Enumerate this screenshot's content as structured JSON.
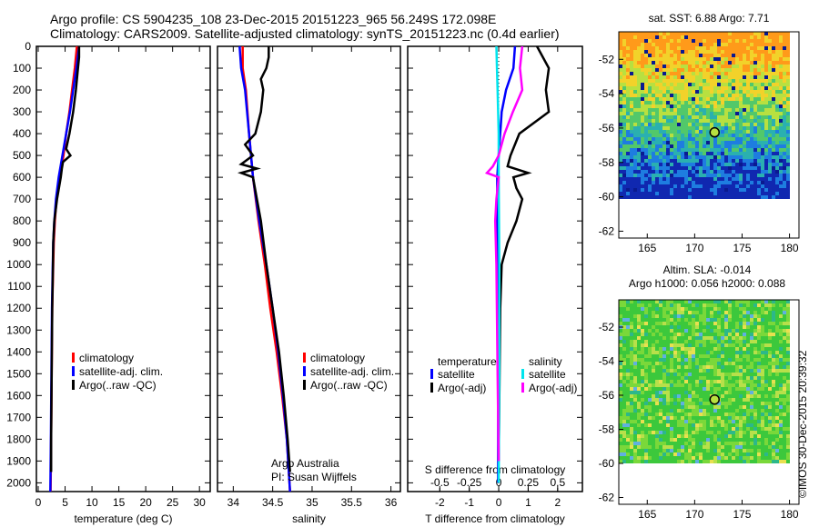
{
  "header": {
    "line1": "Argo profile: CS 5904235_108 23-Dec-2015 20151223_965 56.249S 172.098E",
    "line2": "Climatology: CARS2009. Satellite-adjusted climatology: synTS_20151223.nc (0.4d earlier)"
  },
  "credit": "©IMOS 30-Dec-2015 20:39:32",
  "colors": {
    "clim": "#ff0000",
    "sat": "#0000ff",
    "argo": "#000000",
    "s_sat": "#00e5ee",
    "s_argo": "#ff00ff"
  },
  "chart_data": [
    {
      "type": "line",
      "xlabel": "temperature (deg C)",
      "ylabel": "depth",
      "xlim": [
        -0.34,
        32
      ],
      "ylim": [
        2040,
        0
      ],
      "xticks": [
        "0",
        "5",
        "10",
        "15",
        "20",
        "25",
        "30"
      ],
      "xtickvals": [
        0,
        5,
        10,
        15,
        20,
        25,
        30
      ],
      "legend": [
        "climatology",
        "satellite-adj. clim.",
        "Argo(..raw -QC)"
      ],
      "series": [
        {
          "name": "climatology",
          "color": "clim",
          "depth": [
            0,
            100,
            200,
            300,
            400,
            500,
            600,
            700,
            800,
            900,
            1000,
            1200,
            1500,
            1800,
            2040
          ],
          "values": [
            7.2,
            6.8,
            6.3,
            5.8,
            5.2,
            4.7,
            4.0,
            3.4,
            3.1,
            2.9,
            2.8,
            2.6,
            2.5,
            2.4,
            2.3
          ]
        },
        {
          "name": "satellite-adj. clim.",
          "color": "sat",
          "depth": [
            0,
            100,
            200,
            300,
            400,
            500,
            600,
            700,
            800,
            900,
            1000,
            1200,
            1500,
            1800,
            2040
          ],
          "values": [
            7.6,
            7.1,
            6.5,
            5.9,
            5.2,
            4.5,
            3.8,
            3.3,
            3.0,
            2.8,
            2.7,
            2.55,
            2.45,
            2.35,
            2.25
          ]
        },
        {
          "name": "Argo(..raw -QC)",
          "color": "argo",
          "depth": [
            0,
            50,
            100,
            200,
            300,
            400,
            470,
            500,
            530,
            560,
            600,
            700,
            800,
            900,
            1000,
            1200,
            1500,
            1800,
            1950
          ],
          "values": [
            7.6,
            7.6,
            7.4,
            7.0,
            6.5,
            5.8,
            5.2,
            6.0,
            4.6,
            4.4,
            4.2,
            3.5,
            3.0,
            2.8,
            2.75,
            2.6,
            2.5,
            2.4,
            2.4
          ]
        }
      ]
    },
    {
      "type": "line",
      "xlabel": "salinity",
      "ylabel": "depth",
      "xlim": [
        33.8,
        36.12
      ],
      "ylim": [
        2040,
        0
      ],
      "xticks": [
        "34",
        "34.5",
        "35",
        "35.5",
        "36"
      ],
      "xtickvals": [
        34,
        34.5,
        35,
        35.5,
        36
      ],
      "legend": [
        "climatology",
        "satellite-adj. clim.",
        "Argo(..raw -QC)"
      ],
      "annotation": [
        "Argo Australia",
        "PI: Susan Wijffels"
      ],
      "series": [
        {
          "name": "climatology",
          "color": "clim",
          "depth": [
            0,
            100,
            200,
            400,
            600,
            800,
            1000,
            1200,
            1400,
            1600,
            1800,
            2040
          ],
          "values": [
            34.12,
            34.12,
            34.16,
            34.2,
            34.25,
            34.32,
            34.4,
            34.47,
            34.55,
            34.62,
            34.68,
            34.72
          ]
        },
        {
          "name": "satellite-adj. clim.",
          "color": "sat",
          "depth": [
            0,
            100,
            200,
            400,
            600,
            800,
            1000,
            1200,
            1400,
            1600,
            1800,
            2040
          ],
          "values": [
            34.08,
            34.1,
            34.15,
            34.2,
            34.25,
            34.33,
            34.42,
            34.5,
            34.57,
            34.63,
            34.68,
            34.72
          ]
        },
        {
          "name": "Argo(..raw -QC)",
          "color": "argo",
          "depth": [
            0,
            50,
            100,
            150,
            200,
            300,
            400,
            450,
            500,
            540,
            560,
            580,
            600,
            700,
            800,
            1000,
            1200,
            1400,
            1600,
            1800,
            1950
          ],
          "values": [
            34.45,
            34.45,
            34.42,
            34.35,
            34.38,
            34.35,
            34.28,
            34.15,
            34.25,
            34.1,
            34.3,
            34.1,
            34.25,
            34.3,
            34.35,
            34.42,
            34.5,
            34.58,
            34.64,
            34.69,
            34.72
          ]
        }
      ]
    },
    {
      "type": "line",
      "xlabel": "T difference from climatology",
      "x2label": "S difference from climatology",
      "ylabel": "depth",
      "xlim": [
        -3.09,
        2.84
      ],
      "ylim": [
        2040,
        0
      ],
      "xticks": [
        "-2",
        "-1",
        "0",
        "1",
        "2"
      ],
      "xtickvals": [
        -2,
        -1,
        0,
        1,
        2
      ],
      "x2ticks": [
        "-0.5",
        "-0.25",
        "0",
        "0.25",
        "0.5"
      ],
      "x2tickvals": [
        -0.5,
        -0.25,
        0,
        0.25,
        0.5
      ],
      "legend_t": {
        "title": "temperature",
        "items": [
          "satellite",
          "Argo(-adj)"
        ]
      },
      "legend_s": {
        "title": "salinity",
        "items": [
          "satellite",
          "Argo(-adj)"
        ]
      },
      "series": [
        {
          "name": "T satellite",
          "color": "sat",
          "unit": "T",
          "depth": [
            0,
            100,
            200,
            300,
            400,
            500,
            600,
            800,
            1000,
            1500,
            2000
          ],
          "values": [
            0.55,
            0.5,
            0.25,
            0.1,
            0.05,
            0,
            -0.05,
            -0.05,
            -0.03,
            -0.02,
            -0.02
          ]
        },
        {
          "name": "T Argo(-adj)",
          "color": "argo",
          "unit": "T",
          "depth": [
            0,
            50,
            100,
            200,
            300,
            400,
            500,
            550,
            580,
            600,
            650,
            700,
            800,
            900,
            1000,
            1200,
            1500,
            1900
          ],
          "values": [
            1.3,
            1.5,
            1.7,
            1.6,
            1.7,
            0.7,
            0.4,
            0.3,
            1.0,
            0.5,
            0.6,
            0.8,
            0.6,
            0.3,
            0.1,
            0.05,
            0.03,
            0.0
          ]
        },
        {
          "name": "S satellite",
          "color": "s_sat",
          "unit": "S",
          "depth": [
            0,
            100,
            200,
            400,
            600,
            1000,
            1500,
            2000
          ],
          "values": [
            -0.02,
            -0.015,
            -0.01,
            0,
            0,
            0.005,
            0.005,
            0
          ]
        },
        {
          "name": "S Argo(-adj)",
          "color": "s_argo",
          "unit": "S",
          "depth": [
            0,
            100,
            200,
            300,
            400,
            500,
            550,
            580,
            600,
            700,
            800,
            1000,
            1500,
            1900
          ],
          "values": [
            0.2,
            0.18,
            0.2,
            0.12,
            0.05,
            0.0,
            -0.05,
            -0.1,
            0,
            -0.02,
            -0.03,
            -0.02,
            -0.01,
            0
          ]
        }
      ]
    },
    {
      "type": "heatmap",
      "title": "sat. SST: 6.88 Argo: 7.71",
      "xticks": [
        "165",
        "170",
        "175",
        "180"
      ],
      "xtickvals": [
        165,
        170,
        175,
        180
      ],
      "yticks": [
        "-52",
        "-54",
        "-56",
        "-58",
        "-60",
        "-62"
      ],
      "ytickvals": [
        -52,
        -54,
        -56,
        -58,
        -60,
        -62
      ],
      "xlim": [
        162,
        181
      ],
      "ylim": [
        -62.4,
        -50.4
      ],
      "argo_position": [
        172.1,
        -56.25
      ]
    },
    {
      "type": "heatmap",
      "title": "Altim. SLA: -0.014",
      "subtitle": "Argo h1000: 0.056 h2000: 0.088",
      "xticks": [
        "165",
        "170",
        "175",
        "180"
      ],
      "xtickvals": [
        165,
        170,
        175,
        180
      ],
      "yticks": [
        "-52",
        "-54",
        "-56",
        "-58",
        "-60",
        "-62"
      ],
      "ytickvals": [
        -52,
        -54,
        -56,
        -58,
        -60,
        -62
      ],
      "xlim": [
        162,
        181
      ],
      "ylim": [
        -62.4,
        -50.4
      ],
      "argo_position": [
        172.1,
        -56.25
      ]
    }
  ],
  "depth_axis": {
    "ticks": [
      "0",
      "100",
      "200",
      "300",
      "400",
      "500",
      "600",
      "700",
      "800",
      "900",
      "1000",
      "1100",
      "1200",
      "1300",
      "1400",
      "1500",
      "1600",
      "1700",
      "1800",
      "1900",
      "2000"
    ]
  }
}
